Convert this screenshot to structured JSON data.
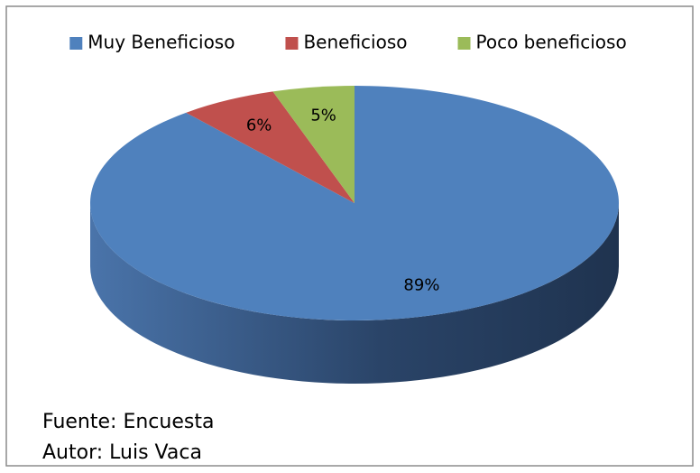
{
  "chart_data": {
    "type": "pie3d",
    "categories": [
      "Muy Beneficioso",
      "Beneficioso",
      "Poco beneficioso"
    ],
    "values": [
      89,
      6,
      5
    ],
    "value_labels": [
      "89%",
      "6%",
      "5%"
    ],
    "colors": [
      "#4f81bd",
      "#c0504d",
      "#9bbb59"
    ],
    "legend": "top",
    "annotations": [
      "Fuente: Encuesta",
      "Autor: Luis Vaca"
    ]
  }
}
